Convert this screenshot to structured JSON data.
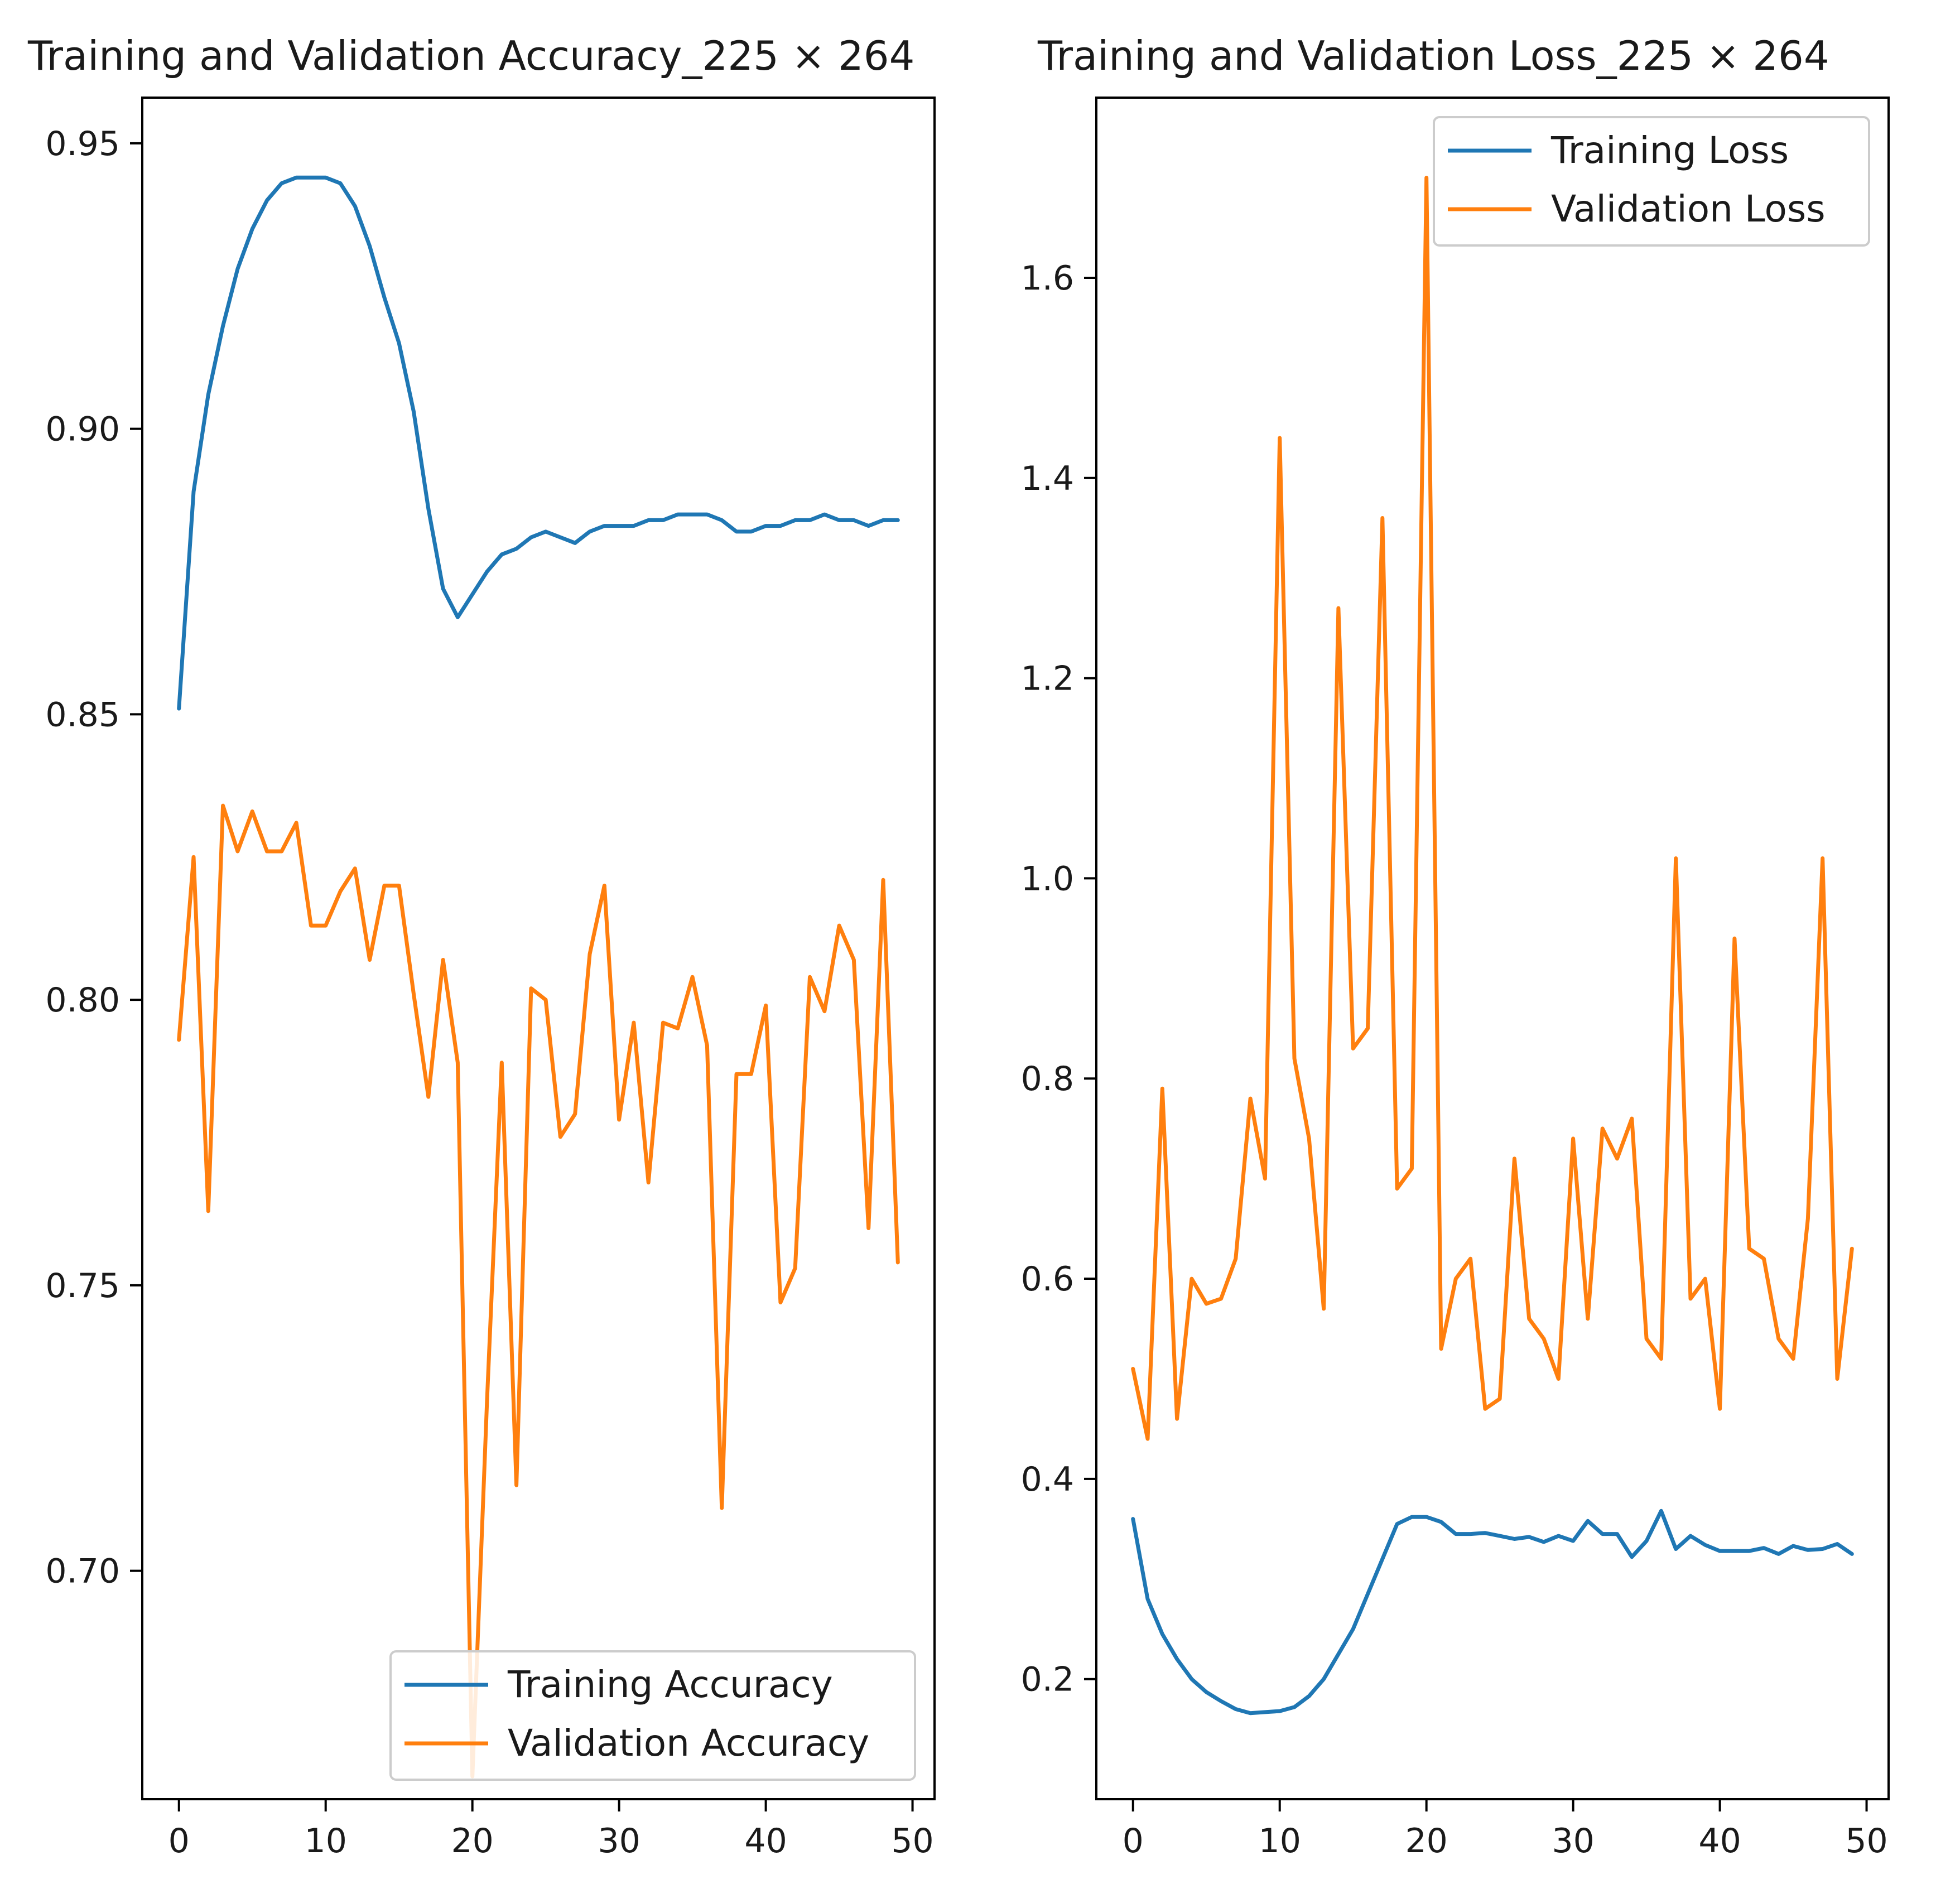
{
  "chart_data": [
    {
      "type": "line",
      "title": "Training and Validation Accuracy_225 × 264",
      "xlabel": "",
      "ylabel": "",
      "xlim": [
        -2.5,
        51.5
      ],
      "ylim": [
        0.66,
        0.958
      ],
      "xticks": [
        0,
        10,
        20,
        30,
        40,
        50
      ],
      "yticks": [
        0.7,
        0.75,
        0.8,
        0.85,
        0.9,
        0.95
      ],
      "ytick_labels": [
        "0.70",
        "0.75",
        "0.80",
        "0.85",
        "0.90",
        "0.95"
      ],
      "legend": "lower-right",
      "series": [
        {
          "name": "Training Accuracy",
          "color": "#1f77b4",
          "x": [
            0,
            1,
            2,
            3,
            4,
            5,
            6,
            7,
            8,
            9,
            10,
            11,
            12,
            13,
            14,
            15,
            16,
            17,
            18,
            19,
            20,
            21,
            22,
            23,
            24,
            25,
            26,
            27,
            28,
            29,
            30,
            31,
            32,
            33,
            34,
            35,
            36,
            37,
            38,
            39,
            40,
            41,
            42,
            43,
            44,
            45,
            46,
            47,
            48,
            49
          ],
          "values": [
            0.851,
            0.889,
            0.906,
            0.918,
            0.928,
            0.935,
            0.94,
            0.943,
            0.944,
            0.944,
            0.944,
            0.943,
            0.939,
            0.932,
            0.923,
            0.915,
            0.903,
            0.886,
            0.872,
            0.867,
            0.871,
            0.875,
            0.878,
            0.879,
            0.881,
            0.882,
            0.881,
            0.88,
            0.882,
            0.883,
            0.883,
            0.883,
            0.884,
            0.884,
            0.885,
            0.885,
            0.885,
            0.884,
            0.882,
            0.882,
            0.883,
            0.883,
            0.884,
            0.884,
            0.885,
            0.884,
            0.884,
            0.883,
            0.884,
            0.884
          ]
        },
        {
          "name": "Validation Accuracy",
          "color": "#ff7f0e",
          "x": [
            0,
            1,
            2,
            3,
            4,
            5,
            6,
            7,
            8,
            9,
            10,
            11,
            12,
            13,
            14,
            15,
            16,
            17,
            18,
            19,
            20,
            21,
            22,
            23,
            24,
            25,
            26,
            27,
            28,
            29,
            30,
            31,
            32,
            33,
            34,
            35,
            36,
            37,
            38,
            39,
            40,
            41,
            42,
            43,
            44,
            45,
            46,
            47,
            48,
            49
          ],
          "values": [
            0.793,
            0.825,
            0.763,
            0.834,
            0.826,
            0.833,
            0.826,
            0.826,
            0.831,
            0.813,
            0.813,
            0.819,
            0.823,
            0.807,
            0.82,
            0.82,
            0.801,
            0.783,
            0.807,
            0.789,
            0.664,
            0.73,
            0.789,
            0.715,
            0.802,
            0.8,
            0.776,
            0.78,
            0.808,
            0.82,
            0.779,
            0.796,
            0.768,
            0.796,
            0.795,
            0.804,
            0.792,
            0.711,
            0.787,
            0.787,
            0.799,
            0.747,
            0.753,
            0.804,
            0.798,
            0.813,
            0.807,
            0.76,
            0.821,
            0.754
          ]
        }
      ]
    },
    {
      "type": "line",
      "title": "Training and Validation Loss_225 × 264",
      "xlabel": "",
      "ylabel": "",
      "xlim": [
        -2.5,
        51.5
      ],
      "ylim": [
        0.08,
        1.78
      ],
      "xticks": [
        0,
        10,
        20,
        30,
        40,
        50
      ],
      "yticks": [
        0.2,
        0.4,
        0.6,
        0.8,
        1.0,
        1.2,
        1.4,
        1.6
      ],
      "ytick_labels": [
        "0.2",
        "0.4",
        "0.6",
        "0.8",
        "1.0",
        "1.2",
        "1.4",
        "1.6"
      ],
      "legend": "upper-right",
      "series": [
        {
          "name": "Training Loss",
          "color": "#1f77b4",
          "x": [
            0,
            1,
            2,
            3,
            4,
            5,
            6,
            7,
            8,
            9,
            10,
            11,
            12,
            13,
            14,
            15,
            16,
            17,
            18,
            19,
            20,
            21,
            22,
            23,
            24,
            25,
            26,
            27,
            28,
            29,
            30,
            31,
            32,
            33,
            34,
            35,
            36,
            37,
            38,
            39,
            40,
            41,
            42,
            43,
            44,
            45,
            46,
            47,
            48,
            49
          ],
          "values": [
            0.36,
            0.28,
            0.245,
            0.22,
            0.2,
            0.187,
            0.178,
            0.17,
            0.166,
            0.167,
            0.168,
            0.172,
            0.183,
            0.2,
            0.225,
            0.25,
            0.285,
            0.32,
            0.355,
            0.362,
            0.362,
            0.357,
            0.345,
            0.345,
            0.346,
            0.343,
            0.34,
            0.342,
            0.337,
            0.343,
            0.338,
            0.358,
            0.345,
            0.345,
            0.322,
            0.338,
            0.368,
            0.33,
            0.343,
            0.334,
            0.328,
            0.328,
            0.328,
            0.331,
            0.325,
            0.333,
            0.329,
            0.33,
            0.335,
            0.325
          ]
        },
        {
          "name": "Validation Loss",
          "color": "#ff7f0e",
          "x": [
            0,
            1,
            2,
            3,
            4,
            5,
            6,
            7,
            8,
            9,
            10,
            11,
            12,
            13,
            14,
            15,
            16,
            17,
            18,
            19,
            20,
            21,
            22,
            23,
            24,
            25,
            26,
            27,
            28,
            29,
            30,
            31,
            32,
            33,
            34,
            35,
            36,
            37,
            38,
            39,
            40,
            41,
            42,
            43,
            44,
            45,
            46,
            47,
            48,
            49
          ],
          "values": [
            0.51,
            0.44,
            0.79,
            0.46,
            0.6,
            0.575,
            0.58,
            0.62,
            0.78,
            0.7,
            1.44,
            0.82,
            0.74,
            0.57,
            1.27,
            0.83,
            0.85,
            1.36,
            0.69,
            0.71,
            1.7,
            0.53,
            0.6,
            0.62,
            0.47,
            0.48,
            0.72,
            0.56,
            0.54,
            0.5,
            0.74,
            0.56,
            0.75,
            0.72,
            0.76,
            0.54,
            0.52,
            1.02,
            0.58,
            0.6,
            0.47,
            0.94,
            0.63,
            0.62,
            0.54,
            0.52,
            0.66,
            1.02,
            0.5,
            0.63
          ]
        }
      ]
    }
  ]
}
